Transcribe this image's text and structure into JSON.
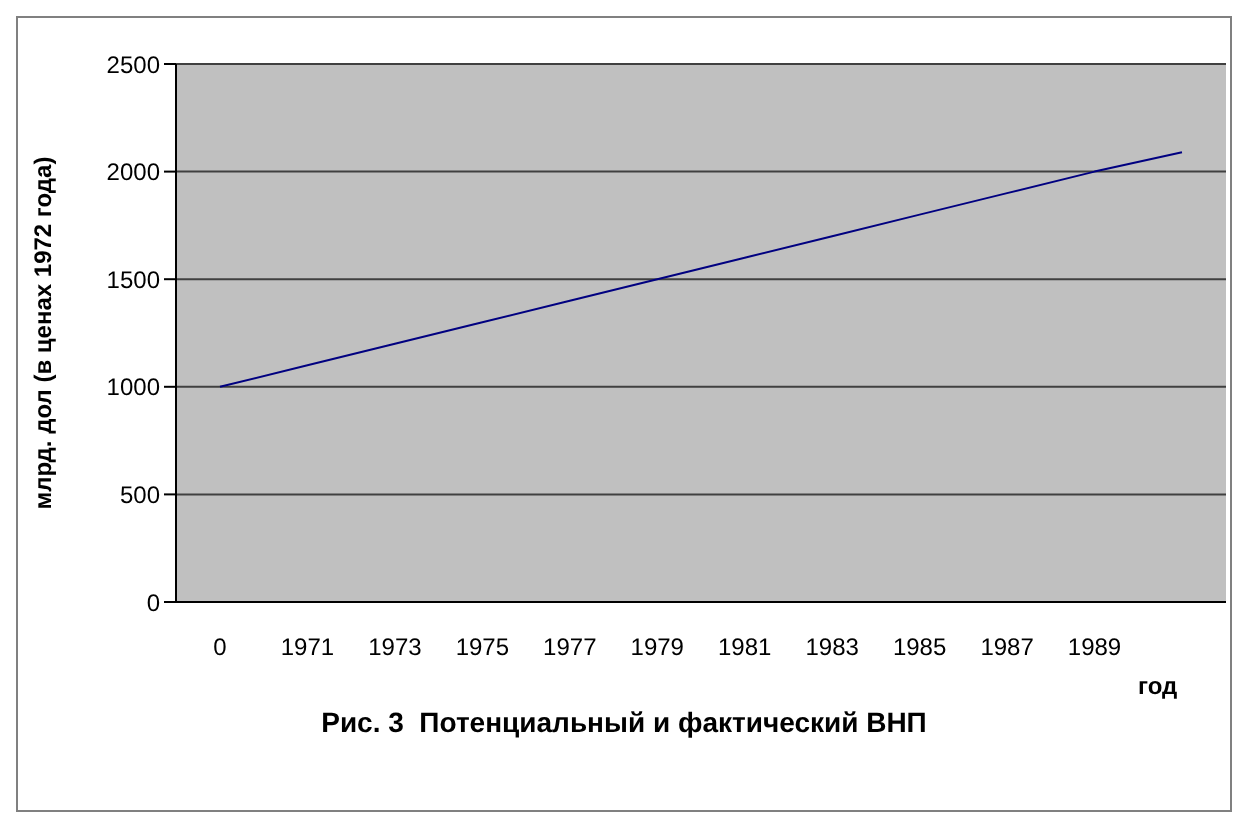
{
  "chart_data": {
    "type": "line",
    "title": "Рис. 3  Потенциальный и фактический ВНП",
    "xlabel": "год",
    "ylabel": "млрд. дол (в ценах 1972 года)",
    "categories": [
      "0",
      "1971",
      "1973",
      "1975",
      "1977",
      "1979",
      "1981",
      "1983",
      "1985",
      "1987",
      "1989",
      null
    ],
    "series": [
      {
        "color": "#000080",
        "values": [
          1000,
          1100,
          1200,
          1300,
          1400,
          1500,
          1600,
          1700,
          1800,
          1900,
          2000,
          2090
        ]
      }
    ],
    "ylim": [
      0,
      2500
    ],
    "yticks": [
      0,
      500,
      1000,
      1500,
      2000,
      2500
    ],
    "grid": "y",
    "marker": "none",
    "line_style": "solid"
  }
}
